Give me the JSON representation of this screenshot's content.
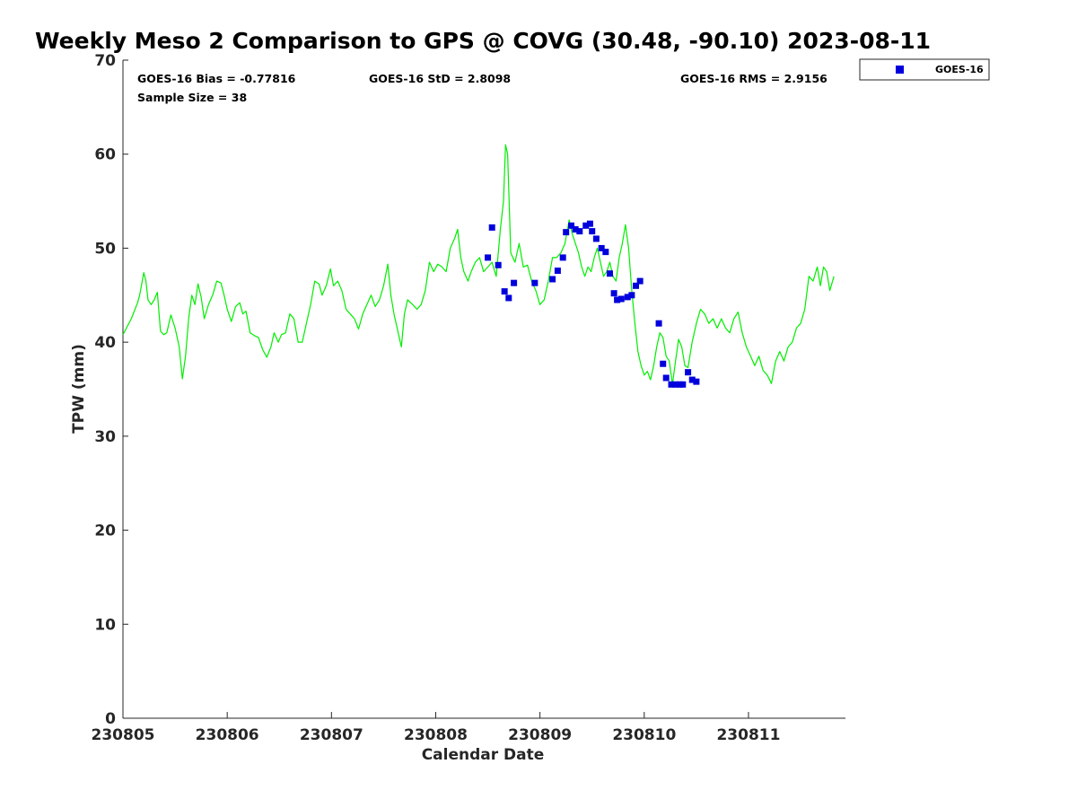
{
  "chart_data": {
    "type": "line",
    "title": "Weekly Meso 2 Comparison to GPS @ COVG (30.48, -90.10) 2023-08-11",
    "xlabel": "Calendar Date",
    "ylabel": "TPW (mm)",
    "xlim": [
      0,
      6.93
    ],
    "ylim": [
      0,
      70
    ],
    "x_tick_values": [
      0,
      1,
      2,
      3,
      4,
      5,
      6
    ],
    "x_tick_labels": [
      "230805",
      "230806",
      "230807",
      "230808",
      "230809",
      "230810",
      "230811"
    ],
    "y_ticks": [
      0,
      10,
      20,
      30,
      40,
      50,
      60,
      70
    ],
    "x_unit_note": "x values are days after 230805 00Z as printed on the date axis",
    "stats": {
      "bias": "GOES-16 Bias = -0.77816",
      "std": "GOES-16 StD = 2.8098",
      "rms": "GOES-16 RMS = 2.9156",
      "sample": "Sample Size = 38"
    },
    "legend": {
      "position": "outside top-right",
      "entries": [
        "GOES-16"
      ]
    },
    "grid": false,
    "series": [
      {
        "kind": "line",
        "color": "#00ee00",
        "points": [
          [
            0.0,
            40.8
          ],
          [
            0.08,
            42.5
          ],
          [
            0.14,
            44.2
          ],
          [
            0.16,
            45.0
          ],
          [
            0.18,
            46.2
          ],
          [
            0.2,
            47.4
          ],
          [
            0.22,
            46.5
          ],
          [
            0.24,
            44.5
          ],
          [
            0.27,
            44.0
          ],
          [
            0.3,
            44.5
          ],
          [
            0.33,
            45.3
          ],
          [
            0.36,
            41.2
          ],
          [
            0.39,
            40.8
          ],
          [
            0.42,
            41.0
          ],
          [
            0.46,
            42.9
          ],
          [
            0.5,
            41.5
          ],
          [
            0.54,
            39.5
          ],
          [
            0.57,
            36.1
          ],
          [
            0.6,
            38.5
          ],
          [
            0.63,
            42.5
          ],
          [
            0.66,
            45.0
          ],
          [
            0.69,
            44.0
          ],
          [
            0.72,
            46.2
          ],
          [
            0.75,
            44.8
          ],
          [
            0.78,
            42.5
          ],
          [
            0.82,
            44.0
          ],
          [
            0.86,
            45.0
          ],
          [
            0.9,
            46.5
          ],
          [
            0.94,
            46.3
          ],
          [
            0.97,
            45.0
          ],
          [
            1.0,
            43.5
          ],
          [
            1.04,
            42.2
          ],
          [
            1.08,
            43.8
          ],
          [
            1.12,
            44.2
          ],
          [
            1.15,
            43.0
          ],
          [
            1.18,
            43.3
          ],
          [
            1.22,
            41.0
          ],
          [
            1.26,
            40.7
          ],
          [
            1.3,
            40.5
          ],
          [
            1.34,
            39.2
          ],
          [
            1.38,
            38.4
          ],
          [
            1.42,
            39.5
          ],
          [
            1.45,
            41.0
          ],
          [
            1.49,
            40.0
          ],
          [
            1.52,
            40.8
          ],
          [
            1.56,
            41.0
          ],
          [
            1.6,
            43.0
          ],
          [
            1.64,
            42.5
          ],
          [
            1.68,
            40.0
          ],
          [
            1.72,
            40.0
          ],
          [
            1.76,
            42.0
          ],
          [
            1.8,
            44.0
          ],
          [
            1.84,
            46.5
          ],
          [
            1.88,
            46.2
          ],
          [
            1.91,
            45.0
          ],
          [
            1.95,
            46.0
          ],
          [
            1.99,
            47.8
          ],
          [
            2.02,
            46.0
          ],
          [
            2.06,
            46.5
          ],
          [
            2.1,
            45.5
          ],
          [
            2.14,
            43.5
          ],
          [
            2.18,
            43.0
          ],
          [
            2.22,
            42.5
          ],
          [
            2.26,
            41.4
          ],
          [
            2.3,
            43.0
          ],
          [
            2.34,
            44.0
          ],
          [
            2.38,
            45.0
          ],
          [
            2.42,
            43.8
          ],
          [
            2.46,
            44.5
          ],
          [
            2.5,
            46.0
          ],
          [
            2.54,
            48.3
          ],
          [
            2.57,
            45.0
          ],
          [
            2.6,
            43.0
          ],
          [
            2.64,
            41.0
          ],
          [
            2.67,
            39.5
          ],
          [
            2.7,
            43.0
          ],
          [
            2.73,
            44.5
          ],
          [
            2.78,
            44.0
          ],
          [
            2.82,
            43.5
          ],
          [
            2.86,
            44.0
          ],
          [
            2.9,
            45.5
          ],
          [
            2.94,
            48.5
          ],
          [
            2.98,
            47.5
          ],
          [
            3.02,
            48.3
          ],
          [
            3.06,
            48.0
          ],
          [
            3.1,
            47.5
          ],
          [
            3.14,
            50.0
          ],
          [
            3.18,
            51.0
          ],
          [
            3.21,
            52.0
          ],
          [
            3.24,
            49.0
          ],
          [
            3.27,
            47.5
          ],
          [
            3.31,
            46.5
          ],
          [
            3.34,
            47.5
          ],
          [
            3.38,
            48.5
          ],
          [
            3.42,
            49.0
          ],
          [
            3.46,
            47.5
          ],
          [
            3.5,
            48.0
          ],
          [
            3.54,
            48.5
          ],
          [
            3.58,
            47.0
          ],
          [
            3.62,
            52.0
          ],
          [
            3.65,
            55.0
          ],
          [
            3.67,
            61.0
          ],
          [
            3.69,
            60.0
          ],
          [
            3.72,
            49.5
          ],
          [
            3.76,
            48.5
          ],
          [
            3.8,
            50.5
          ],
          [
            3.84,
            48.0
          ],
          [
            3.88,
            48.2
          ],
          [
            3.92,
            46.5
          ],
          [
            3.96,
            45.5
          ],
          [
            4.0,
            44.0
          ],
          [
            4.04,
            44.5
          ],
          [
            4.08,
            46.5
          ],
          [
            4.12,
            49.0
          ],
          [
            4.16,
            49.0
          ],
          [
            4.2,
            49.5
          ],
          [
            4.24,
            50.5
          ],
          [
            4.28,
            53.0
          ],
          [
            4.31,
            51.5
          ],
          [
            4.34,
            50.5
          ],
          [
            4.37,
            49.5
          ],
          [
            4.4,
            48.0
          ],
          [
            4.43,
            47.0
          ],
          [
            4.46,
            48.0
          ],
          [
            4.49,
            47.5
          ],
          [
            4.52,
            49.0
          ],
          [
            4.55,
            50.0
          ],
          [
            4.58,
            48.5
          ],
          [
            4.61,
            47.0
          ],
          [
            4.64,
            47.5
          ],
          [
            4.67,
            48.5
          ],
          [
            4.7,
            47.0
          ],
          [
            4.73,
            46.5
          ],
          [
            4.76,
            49.0
          ],
          [
            4.79,
            50.5
          ],
          [
            4.82,
            52.5
          ],
          [
            4.85,
            50.0
          ],
          [
            4.88,
            45.5
          ],
          [
            4.91,
            42.0
          ],
          [
            4.94,
            39.0
          ],
          [
            4.97,
            37.5
          ],
          [
            5.0,
            36.5
          ],
          [
            5.03,
            36.9
          ],
          [
            5.06,
            36.0
          ],
          [
            5.09,
            37.5
          ],
          [
            5.12,
            39.5
          ],
          [
            5.15,
            41.0
          ],
          [
            5.18,
            40.5
          ],
          [
            5.21,
            38.5
          ],
          [
            5.24,
            38.0
          ],
          [
            5.27,
            35.5
          ],
          [
            5.3,
            38.0
          ],
          [
            5.33,
            40.3
          ],
          [
            5.36,
            39.5
          ],
          [
            5.39,
            37.5
          ],
          [
            5.42,
            37.3
          ],
          [
            5.46,
            40.0
          ],
          [
            5.5,
            42.0
          ],
          [
            5.54,
            43.5
          ],
          [
            5.58,
            43.0
          ],
          [
            5.62,
            42.0
          ],
          [
            5.66,
            42.5
          ],
          [
            5.7,
            41.5
          ],
          [
            5.74,
            42.5
          ],
          [
            5.78,
            41.5
          ],
          [
            5.82,
            41.0
          ],
          [
            5.86,
            42.5
          ],
          [
            5.9,
            43.2
          ],
          [
            5.94,
            41.0
          ],
          [
            5.98,
            39.5
          ],
          [
            6.02,
            38.5
          ],
          [
            6.06,
            37.5
          ],
          [
            6.1,
            38.5
          ],
          [
            6.14,
            37.0
          ],
          [
            6.18,
            36.5
          ],
          [
            6.22,
            35.6
          ],
          [
            6.26,
            38.0
          ],
          [
            6.3,
            39.0
          ],
          [
            6.34,
            38.0
          ],
          [
            6.38,
            39.5
          ],
          [
            6.42,
            40.0
          ],
          [
            6.46,
            41.5
          ],
          [
            6.5,
            42.0
          ],
          [
            6.54,
            43.5
          ],
          [
            6.58,
            47.0
          ],
          [
            6.62,
            46.5
          ],
          [
            6.66,
            48.0
          ],
          [
            6.69,
            46.0
          ],
          [
            6.72,
            48.0
          ],
          [
            6.75,
            47.5
          ],
          [
            6.78,
            45.5
          ],
          [
            6.82,
            47.0
          ]
        ]
      },
      {
        "name": "GOES-16",
        "kind": "scatter",
        "color": "#0000dd",
        "points": [
          [
            3.5,
            49.0
          ],
          [
            3.54,
            52.2
          ],
          [
            3.6,
            48.2
          ],
          [
            3.66,
            45.4
          ],
          [
            3.7,
            44.7
          ],
          [
            3.75,
            46.3
          ],
          [
            3.95,
            46.3
          ],
          [
            4.12,
            46.7
          ],
          [
            4.17,
            47.6
          ],
          [
            4.22,
            49.0
          ],
          [
            4.25,
            51.7
          ],
          [
            4.3,
            52.4
          ],
          [
            4.34,
            52.0
          ],
          [
            4.38,
            51.8
          ],
          [
            4.44,
            52.4
          ],
          [
            4.48,
            52.6
          ],
          [
            4.5,
            51.8
          ],
          [
            4.54,
            51.0
          ],
          [
            4.59,
            50.0
          ],
          [
            4.63,
            49.6
          ],
          [
            4.67,
            47.3
          ],
          [
            4.71,
            45.2
          ],
          [
            4.74,
            44.5
          ],
          [
            4.78,
            44.6
          ],
          [
            4.84,
            44.8
          ],
          [
            4.88,
            45.0
          ],
          [
            4.92,
            46.0
          ],
          [
            4.96,
            46.5
          ],
          [
            5.14,
            42.0
          ],
          [
            5.18,
            37.7
          ],
          [
            5.21,
            36.2
          ],
          [
            5.26,
            35.5
          ],
          [
            5.3,
            35.5
          ],
          [
            5.34,
            35.5
          ],
          [
            5.37,
            35.5
          ],
          [
            5.42,
            36.8
          ],
          [
            5.46,
            36.0
          ],
          [
            5.5,
            35.8
          ]
        ]
      }
    ]
  }
}
